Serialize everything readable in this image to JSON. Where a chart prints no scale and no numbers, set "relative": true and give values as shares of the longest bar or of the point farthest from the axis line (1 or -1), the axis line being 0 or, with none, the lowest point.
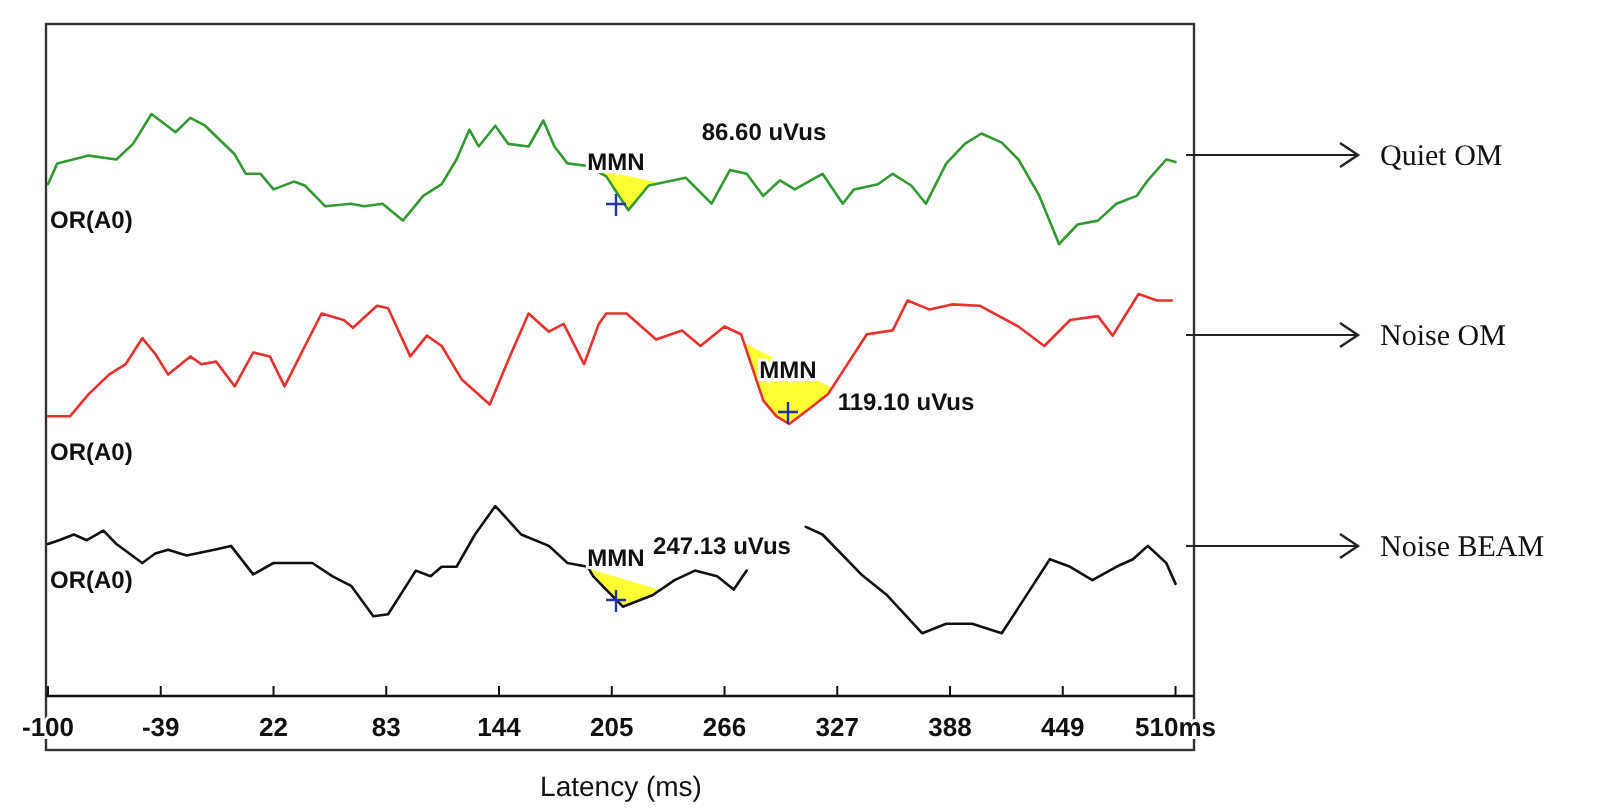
{
  "chart_data": [
    {
      "type": "line",
      "relative": true,
      "xlim": [
        -100,
        520
      ],
      "series": [
        {
          "name": "Quiet OM",
          "color": "#339933",
          "x": [
            -100,
            -95,
            -78,
            -63,
            -54,
            -44,
            -31,
            -23,
            -15,
            -7,
            1,
            7,
            15,
            22,
            33,
            39,
            50,
            64,
            71,
            81,
            92,
            103,
            113,
            121,
            128,
            133,
            142,
            149,
            160,
            168,
            174,
            181,
            192,
            202,
            214,
            225,
            245,
            259,
            269,
            278,
            287,
            296,
            304,
            319,
            330,
            336,
            349,
            357,
            367,
            375,
            386,
            396,
            405,
            416,
            425,
            436,
            447,
            457,
            468,
            478,
            489,
            495,
            505,
            510
          ],
          "values": [
            0.46,
            0.62,
            0.68,
            0.65,
            0.77,
            1.0,
            0.86,
            0.97,
            0.91,
            0.8,
            0.69,
            0.54,
            0.54,
            0.42,
            0.48,
            0.45,
            0.29,
            0.31,
            0.29,
            0.31,
            0.18,
            0.37,
            0.46,
            0.65,
            0.88,
            0.75,
            0.91,
            0.77,
            0.75,
            0.95,
            0.75,
            0.62,
            0.6,
            0.52,
            0.26,
            0.45,
            0.51,
            0.31,
            0.57,
            0.54,
            0.37,
            0.49,
            0.42,
            0.54,
            0.31,
            0.42,
            0.46,
            0.54,
            0.45,
            0.31,
            0.62,
            0.77,
            0.85,
            0.78,
            0.65,
            0.38,
            0,
            0.15,
            0.18,
            0.31,
            0.37,
            0.49,
            0.65,
            0.63
          ]
        }
      ],
      "annotations": [
        "OR(A0)",
        "MMN",
        "86.60 uVus"
      ]
    },
    {
      "type": "line",
      "relative": true,
      "xlim": [
        -100,
        520
      ],
      "series": [
        {
          "name": "Noise OM",
          "color": "#e8302c",
          "x": [
            -100,
            -88,
            -78,
            -67,
            -58,
            -49,
            -42,
            -35,
            -23,
            -17,
            -9,
            1,
            11,
            20,
            28,
            39,
            48,
            60,
            65,
            78,
            84,
            96,
            105,
            113,
            124,
            139,
            149,
            160,
            171,
            179,
            190,
            198,
            202,
            213,
            229,
            243,
            253,
            266,
            275,
            287,
            294,
            301,
            314,
            322,
            343,
            357,
            365,
            377,
            389,
            404,
            425,
            439,
            453,
            468,
            476,
            490,
            500,
            508
          ],
          "values": [
            0.06,
            0.06,
            0.23,
            0.38,
            0.46,
            0.66,
            0.54,
            0.38,
            0.52,
            0.46,
            0.48,
            0.29,
            0.55,
            0.52,
            0.29,
            0.6,
            0.85,
            0.8,
            0.74,
            0.91,
            0.89,
            0.52,
            0.68,
            0.6,
            0.34,
            0.15,
            0.49,
            0.85,
            0.71,
            0.77,
            0.46,
            0.77,
            0.85,
            0.85,
            0.65,
            0.72,
            0.6,
            0.75,
            0.69,
            0.18,
            0.06,
            0,
            0.14,
            0.23,
            0.69,
            0.72,
            0.95,
            0.88,
            0.92,
            0.91,
            0.75,
            0.6,
            0.8,
            0.83,
            0.68,
            1.0,
            0.95,
            0.95
          ]
        }
      ],
      "annotations": [
        "OR(A0)",
        "MMN",
        "119.10 uVus"
      ]
    },
    {
      "type": "line",
      "relative": true,
      "xlabel": "Latency (ms)",
      "xlim": [
        -100,
        520
      ],
      "xticks": [
        {
          "value": -100,
          "label": "-100"
        },
        -39,
        22,
        83,
        144,
        205,
        266,
        327,
        388,
        449,
        {
          "value": 510,
          "label": "510ms"
        }
      ],
      "series": [
        {
          "name": "Noise BEAM",
          "color": "#111111",
          "x": [
            -100,
            -94,
            -86,
            -79,
            -70,
            -63,
            -49,
            -42,
            -35,
            -25,
            -10,
            -1,
            11,
            22,
            36,
            43,
            54,
            64,
            76,
            84,
            99,
            107,
            113,
            121,
            131,
            142,
            156,
            171,
            181,
            192,
            195,
            211,
            227,
            239,
            250,
            262,
            271,
            278,
            294,
            310,
            319,
            340,
            354,
            373,
            386,
            400,
            416,
            428,
            442,
            453,
            465,
            478,
            487,
            495,
            505,
            510
          ],
          "values": [
            0.8,
            0.82,
            0.85,
            0.82,
            0.87,
            0.8,
            0.7,
            0.75,
            0.77,
            0.74,
            0.77,
            0.79,
            0.64,
            0.7,
            0.7,
            0.7,
            0.63,
            0.58,
            0.42,
            0.43,
            0.66,
            0.63,
            0.68,
            0.68,
            0.85,
            1.0,
            0.85,
            0.79,
            0.7,
            0.68,
            0.63,
            0.47,
            0.53,
            0.61,
            0.66,
            0.63,
            0.56,
            0.66,
            null,
            0.89,
            0.85,
            0.64,
            0.53,
            0.33,
            0.38,
            0.38,
            0.33,
            0.51,
            0.72,
            0.68,
            0.61,
            0.68,
            0.72,
            0.79,
            0.7,
            0.59
          ]
        }
      ],
      "annotations": [
        "OR(A0)",
        "MMN",
        "247.13 uVus"
      ]
    }
  ]
}
